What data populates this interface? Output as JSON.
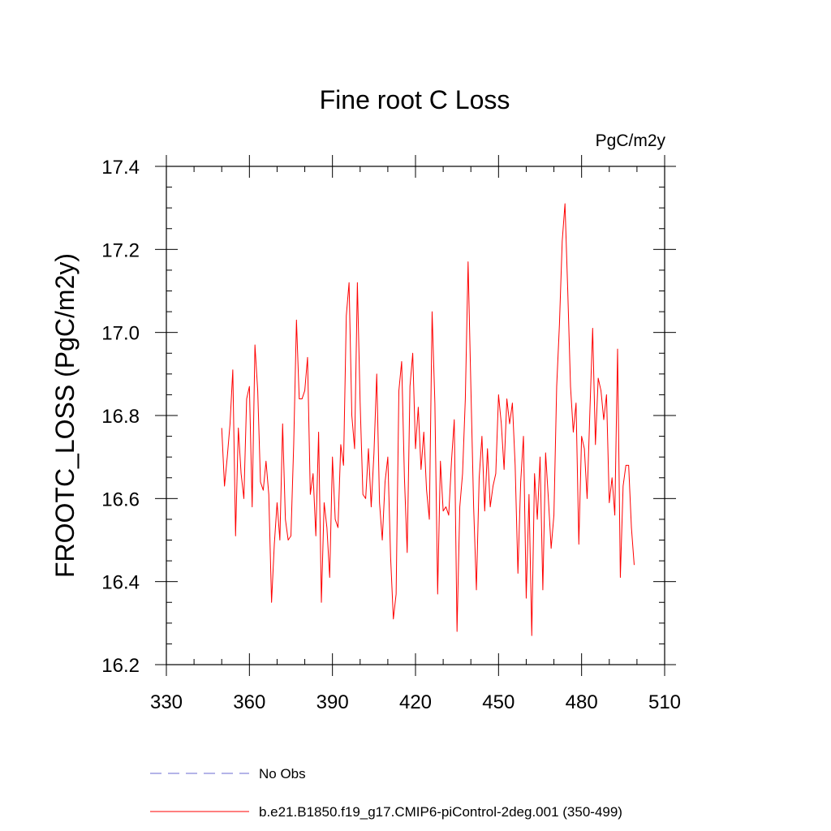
{
  "chart_data": {
    "type": "line",
    "title": "Fine root C Loss",
    "units_label": "PgC/m2y",
    "ylabel": "FROOTC_LOSS  (PgC/m2y)",
    "xlabel": "",
    "xlim": [
      330,
      510
    ],
    "ylim": [
      16.2,
      17.4
    ],
    "x_ticks": [
      "330",
      "360",
      "390",
      "420",
      "450",
      "480",
      "510"
    ],
    "y_ticks": [
      "16.2",
      "16.4",
      "16.6",
      "16.8",
      "17.0",
      "17.2",
      "17.4"
    ],
    "grid": false,
    "legend_position": "bottom",
    "legend": [
      {
        "label": "No Obs",
        "style": "dashed",
        "color": "#6a6ad0"
      },
      {
        "label": "b.e21.B1850.f19_g17.CMIP6-piControl-2deg.001 (350-499)",
        "style": "solid",
        "color": "#ff0000"
      }
    ],
    "series": [
      {
        "name": "b.e21.B1850.f19_g17.CMIP6-piControl-2deg.001 (350-499)",
        "color": "#ff0000",
        "x_start": 350,
        "x_step": 1,
        "values": [
          16.77,
          16.63,
          16.7,
          16.78,
          16.91,
          16.51,
          16.77,
          16.66,
          16.6,
          16.84,
          16.87,
          16.58,
          16.97,
          16.86,
          16.64,
          16.62,
          16.69,
          16.61,
          16.35,
          16.49,
          16.59,
          16.5,
          16.78,
          16.55,
          16.5,
          16.51,
          16.73,
          17.03,
          16.84,
          16.84,
          16.86,
          16.94,
          16.61,
          16.66,
          16.51,
          16.76,
          16.35,
          16.59,
          16.53,
          16.41,
          16.7,
          16.55,
          16.53,
          16.73,
          16.68,
          17.04,
          17.12,
          16.8,
          16.72,
          17.12,
          16.83,
          16.61,
          16.6,
          16.72,
          16.58,
          16.71,
          16.9,
          16.59,
          16.5,
          16.64,
          16.7,
          16.46,
          16.31,
          16.37,
          16.86,
          16.93,
          16.65,
          16.47,
          16.87,
          16.95,
          16.72,
          16.82,
          16.67,
          16.76,
          16.62,
          16.55,
          17.05,
          16.83,
          16.37,
          16.69,
          16.57,
          16.58,
          16.56,
          16.69,
          16.79,
          16.28,
          16.58,
          16.66,
          16.84,
          17.17,
          16.87,
          16.58,
          16.38,
          16.65,
          16.75,
          16.57,
          16.72,
          16.58,
          16.63,
          16.66,
          16.85,
          16.78,
          16.67,
          16.84,
          16.78,
          16.83,
          16.68,
          16.42,
          16.64,
          16.75,
          16.36,
          16.61,
          16.27,
          16.66,
          16.55,
          16.7,
          16.38,
          16.71,
          16.6,
          16.48,
          16.56,
          16.87,
          17.02,
          17.22,
          17.31,
          17.1,
          16.87,
          16.76,
          16.83,
          16.49,
          16.75,
          16.72,
          16.6,
          16.81,
          17.01,
          16.73,
          16.89,
          16.86,
          16.79,
          16.85,
          16.59,
          16.65,
          16.56,
          16.96,
          16.41,
          16.63,
          16.68,
          16.68,
          16.53,
          16.44
        ]
      }
    ]
  }
}
